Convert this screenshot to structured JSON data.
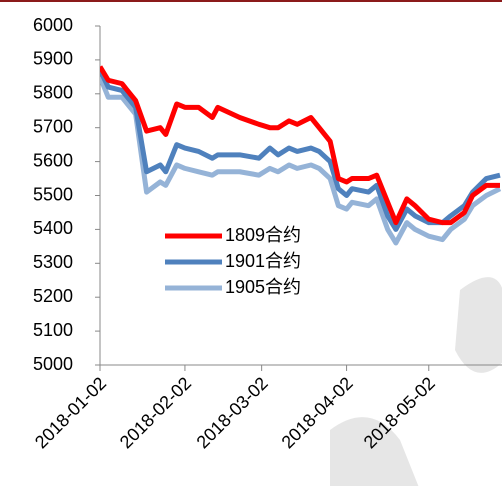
{
  "chart_data": {
    "type": "line",
    "x": [
      "2018-01-02",
      "2018-01-05",
      "2018-01-10",
      "2018-01-15",
      "2018-01-19",
      "2018-01-24",
      "2018-01-26",
      "2018-01-30",
      "2018-02-02",
      "2018-02-07",
      "2018-02-12",
      "2018-02-14",
      "2018-02-22",
      "2018-03-01",
      "2018-03-05",
      "2018-03-08",
      "2018-03-12",
      "2018-03-15",
      "2018-03-20",
      "2018-03-23",
      "2018-03-27",
      "2018-03-30",
      "2018-04-02",
      "2018-04-04",
      "2018-04-10",
      "2018-04-13",
      "2018-04-17",
      "2018-04-20",
      "2018-04-24",
      "2018-04-27",
      "2018-05-02",
      "2018-05-07",
      "2018-05-10",
      "2018-05-15",
      "2018-05-18",
      "2018-05-23",
      "2018-05-28"
    ],
    "series": [
      {
        "name": "1809合约",
        "color": "#ff0000",
        "values": [
          5880,
          5840,
          5830,
          5780,
          5690,
          5700,
          5680,
          5770,
          5760,
          5760,
          5730,
          5760,
          5730,
          5710,
          5700,
          5700,
          5720,
          5710,
          5730,
          5700,
          5660,
          5550,
          5540,
          5550,
          5550,
          5560,
          5480,
          5420,
          5490,
          5470,
          5430,
          5420,
          5420,
          5450,
          5500,
          5530,
          5530
        ]
      },
      {
        "name": "1901合约",
        "color": "#4f81bd",
        "values": [
          5870,
          5820,
          5810,
          5760,
          5570,
          5590,
          5570,
          5650,
          5640,
          5630,
          5610,
          5620,
          5620,
          5610,
          5640,
          5620,
          5640,
          5630,
          5640,
          5630,
          5600,
          5520,
          5500,
          5520,
          5510,
          5530,
          5440,
          5400,
          5460,
          5440,
          5420,
          5420,
          5440,
          5470,
          5510,
          5550,
          5560
        ]
      },
      {
        "name": "1905合约",
        "color": "#95b3d7",
        "values": [
          5850,
          5790,
          5790,
          5740,
          5510,
          5540,
          5530,
          5590,
          5580,
          5570,
          5560,
          5570,
          5570,
          5560,
          5580,
          5570,
          5590,
          5580,
          5590,
          5580,
          5550,
          5470,
          5460,
          5480,
          5470,
          5490,
          5400,
          5360,
          5420,
          5400,
          5380,
          5370,
          5400,
          5430,
          5470,
          5500,
          5520
        ]
      }
    ],
    "xlim": [
      "2018-01-02",
      "2018-05-28"
    ],
    "xticks": [
      "2018-01-02",
      "2018-02-02",
      "2018-03-02",
      "2018-04-02",
      "2018-05-02"
    ],
    "ylim": [
      5000,
      6000
    ],
    "yticks": [
      5000,
      5100,
      5200,
      5300,
      5400,
      5500,
      5600,
      5700,
      5800,
      5900,
      6000
    ]
  }
}
